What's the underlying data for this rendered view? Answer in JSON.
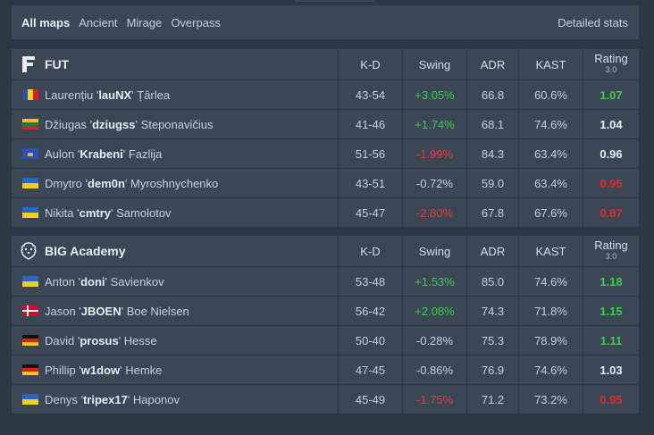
{
  "maps": {
    "tabs": [
      "All maps",
      "Ancient",
      "Mirage",
      "Overpass"
    ],
    "detailed": "Detailed stats"
  },
  "columns": {
    "kd": "K-D",
    "swing": "Swing",
    "adr": "ADR",
    "kast": "KAST",
    "rating": "Rating",
    "rating_sub": "3.0"
  },
  "teams": [
    {
      "name": "FUT",
      "logo_icon": "fut-logo-icon",
      "players": [
        {
          "first": "Laurențiu '",
          "nick": "lauNX",
          "last": "' Țârlea",
          "flag": "flag-romania",
          "kd": "43-54",
          "swing": "+3.05%",
          "swing_sign": "pos",
          "adr": "66.8",
          "kast": "60.6%",
          "rating": "1.07",
          "rating_class": "good"
        },
        {
          "first": "Džiugas '",
          "nick": "dziugss",
          "last": "' Steponavičius",
          "flag": "flag-lithuania",
          "kd": "41-46",
          "swing": "+1.74%",
          "swing_sign": "pos",
          "adr": "68.1",
          "kast": "74.6%",
          "rating": "1.04",
          "rating_class": "mid"
        },
        {
          "first": "Aulon '",
          "nick": "Krabeni",
          "last": "' Fazlija",
          "flag": "flag-kosovo",
          "kd": "51-56",
          "swing": "-1.99%",
          "swing_sign": "neg",
          "adr": "84.3",
          "kast": "63.4%",
          "rating": "0.96",
          "rating_class": "mid"
        },
        {
          "first": "Dmytro '",
          "nick": "dem0n",
          "last": "' Myroshnychenko",
          "flag": "flag-ukraine",
          "kd": "43-51",
          "swing": "-0.72%",
          "swing_sign": "neu",
          "adr": "59.0",
          "kast": "63.4%",
          "rating": "0.95",
          "rating_class": "bad"
        },
        {
          "first": "Nikita '",
          "nick": "cmtry",
          "last": "' Samolotov",
          "flag": "flag-ukraine",
          "kd": "45-47",
          "swing": "-2.80%",
          "swing_sign": "neg",
          "adr": "67.8",
          "kast": "67.6%",
          "rating": "0.87",
          "rating_class": "bad"
        }
      ]
    },
    {
      "name": "BIG Academy",
      "logo_icon": "big-logo-icon",
      "players": [
        {
          "first": "Anton '",
          "nick": "doni",
          "last": "' Savienkov",
          "flag": "flag-ukraine",
          "kd": "53-48",
          "swing": "+1.53%",
          "swing_sign": "pos",
          "adr": "85.0",
          "kast": "74.6%",
          "rating": "1.18",
          "rating_class": "good"
        },
        {
          "first": "Jason '",
          "nick": "JBOEN",
          "last": "' Boe Nielsen",
          "flag": "flag-denmark",
          "kd": "56-42",
          "swing": "+2.08%",
          "swing_sign": "pos",
          "adr": "74.3",
          "kast": "71.8%",
          "rating": "1.15",
          "rating_class": "good"
        },
        {
          "first": "David '",
          "nick": "prosus",
          "last": "' Hesse",
          "flag": "flag-germany",
          "kd": "50-40",
          "swing": "-0.28%",
          "swing_sign": "neu",
          "adr": "75.3",
          "kast": "78.9%",
          "rating": "1.11",
          "rating_class": "good"
        },
        {
          "first": "Phillip '",
          "nick": "w1dow",
          "last": "' Hemke",
          "flag": "flag-germany",
          "kd": "47-45",
          "swing": "-0.86%",
          "swing_sign": "neu",
          "adr": "76.9",
          "kast": "74.6%",
          "rating": "1.03",
          "rating_class": "mid"
        },
        {
          "first": "Denys '",
          "nick": "tripex17",
          "last": "' Haponov",
          "flag": "flag-ukraine",
          "kd": "45-49",
          "swing": "-1.75%",
          "swing_sign": "neg",
          "adr": "71.2",
          "kast": "73.2%",
          "rating": "0.95",
          "rating_class": "bad"
        }
      ]
    }
  ]
}
